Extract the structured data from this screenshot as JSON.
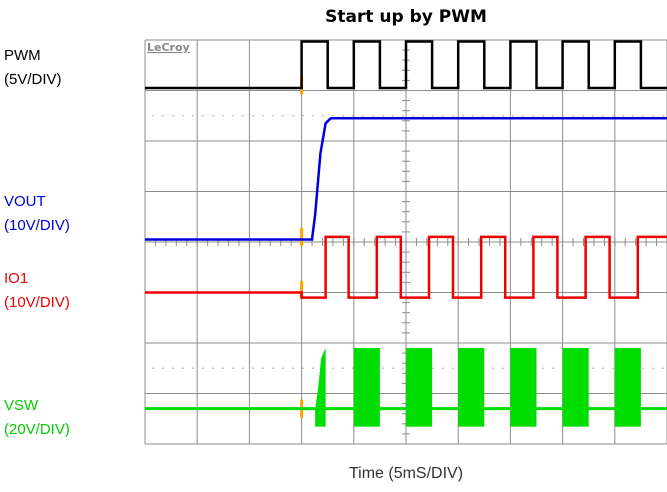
{
  "chart_data": {
    "type": "line",
    "title": "Start up by PWM",
    "xlabel": "Time (5mS/DIV)",
    "ylabel": "",
    "grid": true,
    "brand": "LeCroy",
    "time_per_div_ms": 5,
    "divisions_x": 10,
    "divisions_y": 8,
    "start_time_ms": 15,
    "x_unit": "ms",
    "series": [
      {
        "name": "PWM",
        "scale": "(5V/DIV)",
        "color": "#000000",
        "unit": "V",
        "level_high": 5,
        "level_low": 0,
        "behavior": "square wave begins at start; period ~5 ms",
        "x": [
          0,
          15,
          15,
          17.5,
          17.5,
          20,
          20,
          22.5,
          22.5,
          25,
          25,
          27.5,
          27.5,
          30,
          30,
          32.5,
          32.5,
          35,
          35,
          37.5,
          37.5,
          40,
          40,
          42.5,
          42.5,
          45,
          45,
          47.5,
          47.5,
          50
        ],
        "values": [
          0,
          0,
          5,
          5,
          0,
          0,
          5,
          5,
          0,
          0,
          5,
          5,
          0,
          0,
          5,
          5,
          0,
          0,
          5,
          5,
          0,
          0,
          5,
          5,
          0,
          0,
          5,
          5,
          0,
          0
        ]
      },
      {
        "name": "VOUT",
        "scale": "(10V/DIV)",
        "color": "#0000dd",
        "unit": "V",
        "x": [
          0,
          16,
          16.3,
          16.8,
          17.3,
          17.8,
          20,
          50
        ],
        "values": [
          0,
          0,
          5,
          17,
          23,
          24,
          24,
          24
        ]
      },
      {
        "name": "IO1",
        "scale": "(10V/DIV)",
        "color": "#ee0000",
        "unit": "V",
        "level_high": 11,
        "level_low": -1,
        "x": [
          0,
          15,
          15,
          17.3,
          17.3,
          19.5,
          19.5,
          22.2,
          22.2,
          24.5,
          24.5,
          27.2,
          27.2,
          29.5,
          29.5,
          32.2,
          32.2,
          34.5,
          34.5,
          37.2,
          37.2,
          39.5,
          39.5,
          42.2,
          42.2,
          44.5,
          44.5,
          47.2,
          47.2,
          50
        ],
        "values": [
          0,
          0,
          -1,
          -1,
          11,
          11,
          -1,
          -1,
          11,
          11,
          -1,
          -1,
          11,
          11,
          -1,
          -1,
          11,
          11,
          -1,
          -1,
          11,
          11,
          -1,
          -1,
          11,
          11,
          -1,
          -1,
          11,
          11
        ]
      },
      {
        "name": "VSW",
        "scale": "(20V/DIV)",
        "color": "#00dd00",
        "unit": "V",
        "level_high": 24,
        "level_low": 0,
        "burst_start_ms": [
          16.3,
          20,
          25,
          30,
          35,
          40,
          45
        ],
        "burst_end_ms": [
          17.3,
          22.5,
          27.5,
          32.5,
          37.5,
          42.5,
          47.5
        ]
      }
    ]
  }
}
